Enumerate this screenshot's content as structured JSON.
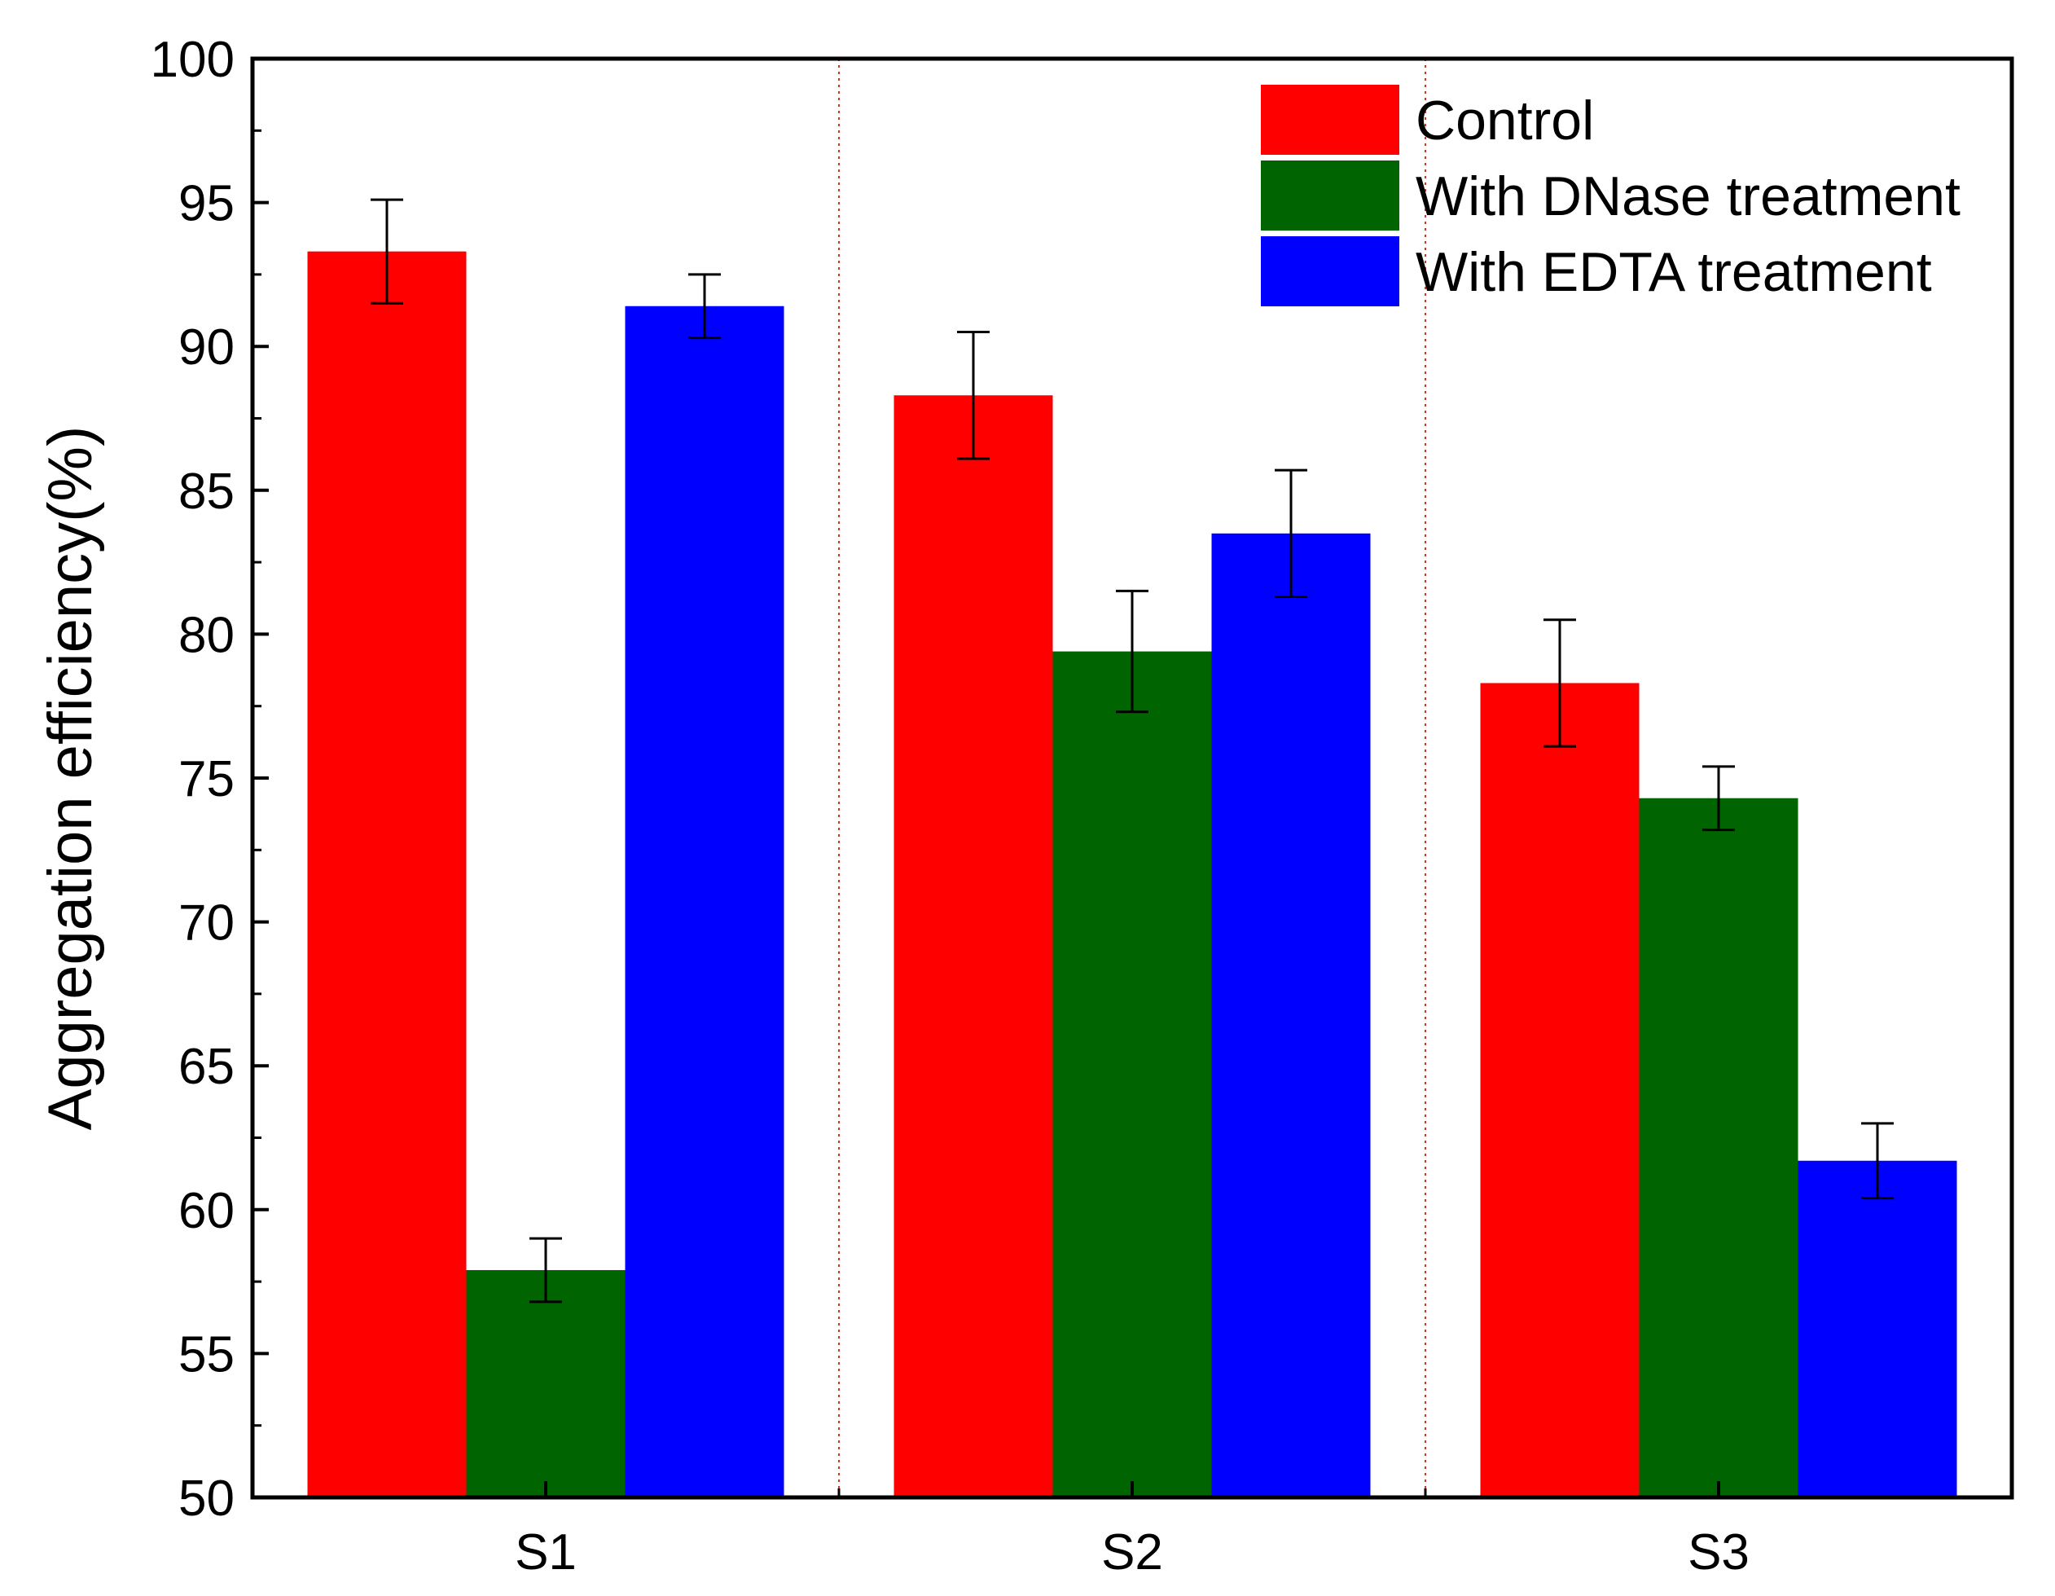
{
  "chart_data": {
    "type": "bar",
    "title": "",
    "xlabel": "",
    "ylabel": "Aggregation efficiency(%)",
    "categories": [
      "S1",
      "S2",
      "S3"
    ],
    "ylim": [
      50,
      100
    ],
    "yticks": [
      50,
      55,
      60,
      65,
      70,
      75,
      80,
      85,
      90,
      95,
      100
    ],
    "grid": false,
    "group_separators": "dotted",
    "legend_position": "top-right",
    "series": [
      {
        "name": "Control",
        "color": "#ff0000",
        "values": [
          93.3,
          88.3,
          78.3
        ],
        "errors": [
          1.8,
          2.2,
          2.2
        ]
      },
      {
        "name": "With DNase treatment",
        "color": "#006400",
        "values": [
          57.9,
          79.4,
          74.3
        ],
        "errors": [
          1.1,
          2.1,
          1.1
        ]
      },
      {
        "name": "With EDTA treatment",
        "color": "#0000ff",
        "values": [
          91.4,
          83.5,
          61.7
        ],
        "errors": [
          1.1,
          2.2,
          1.3
        ]
      }
    ]
  }
}
